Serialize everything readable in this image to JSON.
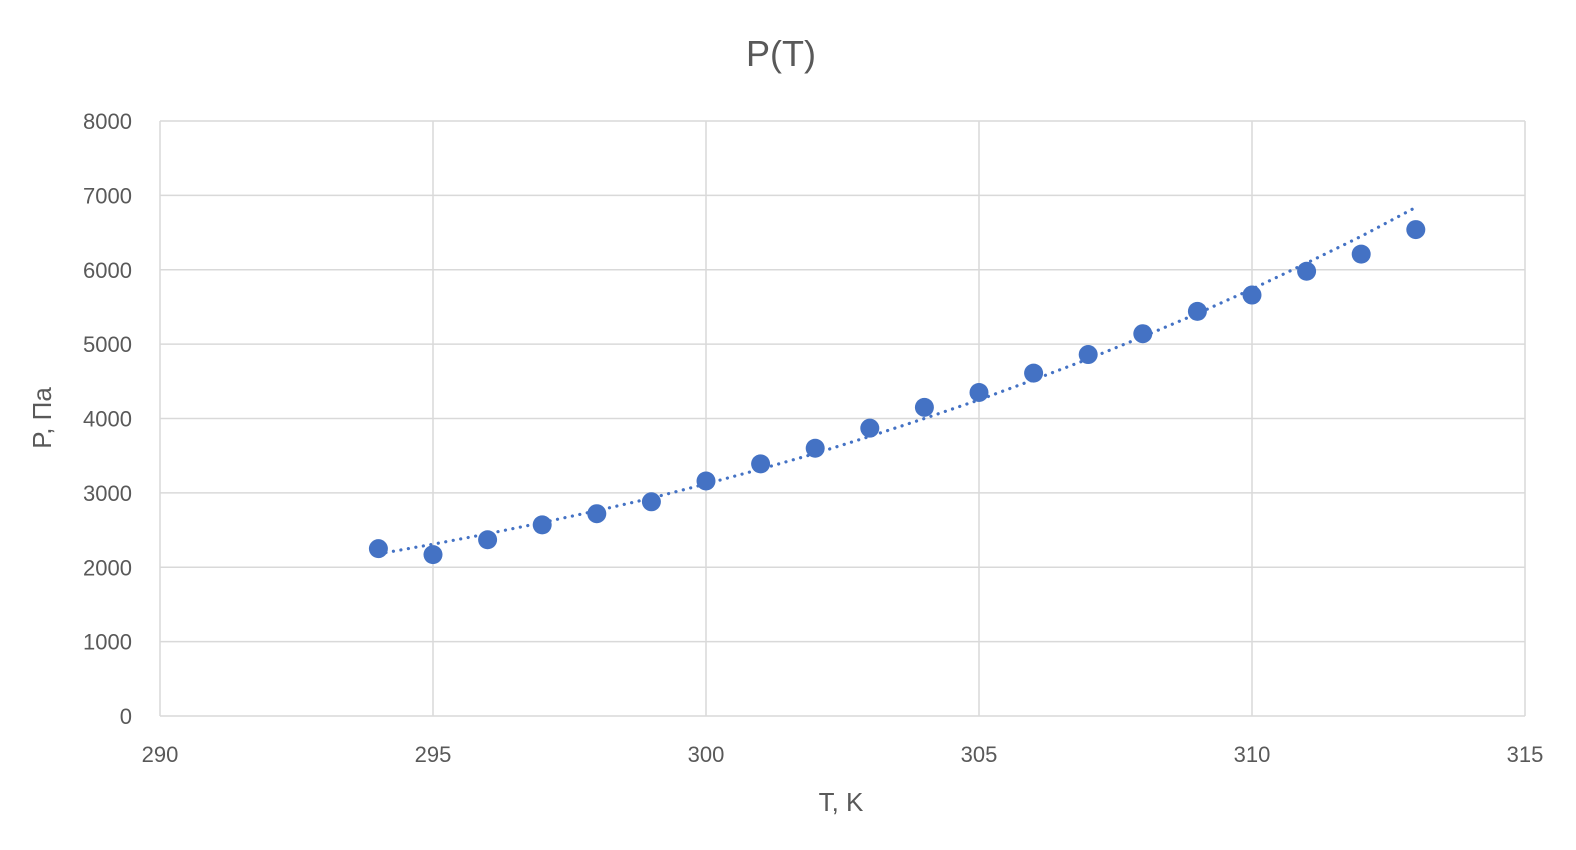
{
  "chart_data": {
    "type": "scatter",
    "title": "P(T)",
    "xlabel": "T, K",
    "ylabel": "P, Па",
    "xlim": [
      290,
      315
    ],
    "ylim": [
      0,
      8000
    ],
    "xticks": [
      "290",
      "295",
      "300",
      "305",
      "310",
      "315"
    ],
    "yticks": [
      "0",
      "1000",
      "2000",
      "3000",
      "4000",
      "5000",
      "6000",
      "7000",
      "8000"
    ],
    "grid": true,
    "legend": "none",
    "colors": {
      "marker": "#4472C4",
      "trendline": "#4472C4",
      "grid": "#D9D9D9",
      "text": "#595959"
    },
    "series": [
      {
        "marker": "circle",
        "x": [
          294,
          295,
          296,
          297,
          298,
          299,
          300,
          301,
          302,
          303,
          304,
          305,
          306,
          307,
          308,
          309,
          310,
          311,
          312,
          313
        ],
        "y": [
          2250,
          2170,
          2370,
          2570,
          2720,
          2880,
          3160,
          3390,
          3600,
          3870,
          4150,
          4350,
          4610,
          4860,
          5140,
          5440,
          5660,
          5980,
          6210,
          6540
        ]
      }
    ],
    "trendline": {
      "style": "dotted",
      "x": [
        294,
        295,
        296,
        297,
        298,
        299,
        300,
        301,
        302,
        303,
        304,
        305,
        306,
        307,
        308,
        309,
        310,
        311,
        312,
        313
      ],
      "y": [
        2180,
        2310,
        2450,
        2600,
        2760,
        2930,
        3120,
        3320,
        3530,
        3760,
        4000,
        4250,
        4520,
        4800,
        5100,
        5410,
        5740,
        6090,
        6450,
        6840
      ]
    }
  }
}
